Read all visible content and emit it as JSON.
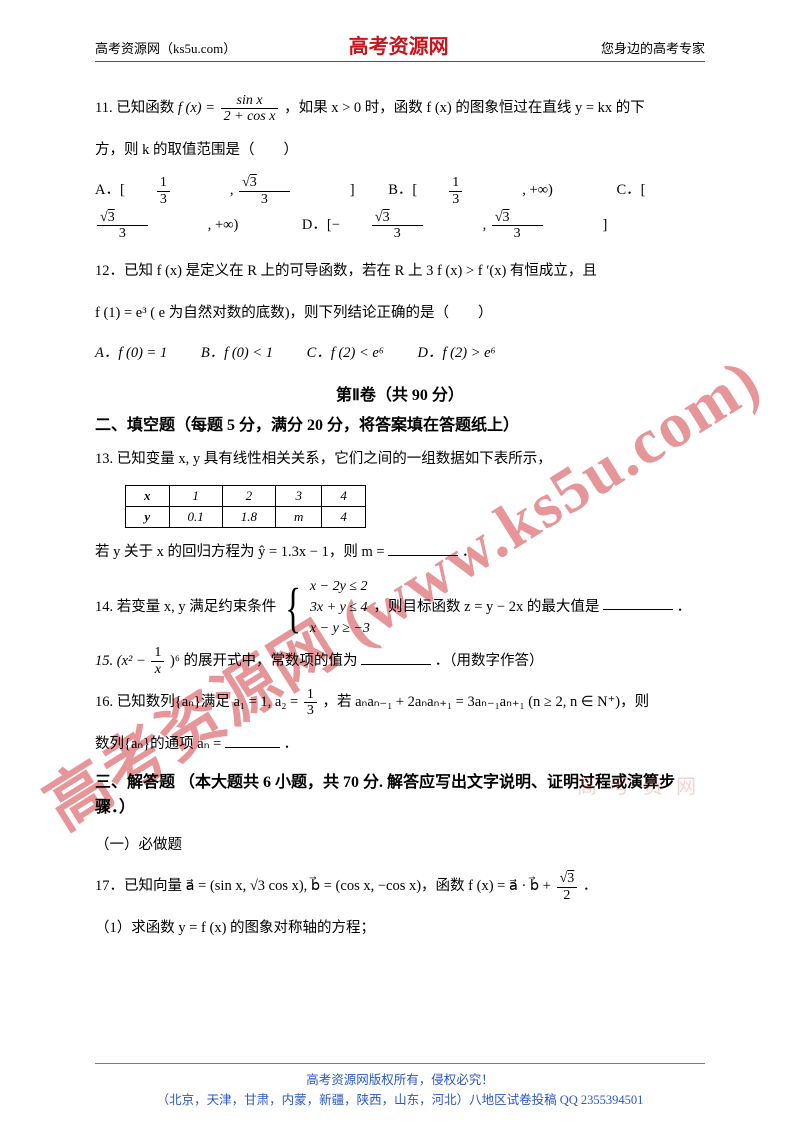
{
  "header": {
    "left": "高考资源网（ks5u.com）",
    "center": "高考资源网",
    "right": "您身边的高考专家"
  },
  "q11": {
    "prefix": "11. 已知函数 ",
    "fx": "f (x) = ",
    "frac_num": "sin x",
    "frac_den": "2 + cos x",
    "mid1": "，如果 x > 0 时，函数 f (x) 的图象恒过在直线 y = kx 的下",
    "line2": "方，则 k 的取值范围是（　　）",
    "A_pre": "A．[",
    "A_f1n": "1",
    "A_f1d": "3",
    "A_f2n_root": "3",
    "A_f2d": "3",
    "B_pre": "B．[",
    "B_f1n": "1",
    "B_f1d": "3",
    "B_suf": ", +∞)",
    "C_pre": "C．[",
    "C_f1n_root": "3",
    "C_f1d": "3",
    "C_suf": ", +∞)",
    "D_pre": "D．[−",
    "D_f1n_root": "3",
    "D_f1d": "3",
    "D_f2n_root": "3",
    "D_f2d": "3"
  },
  "q12": {
    "l1": "12．已知 f (x) 是定义在 R 上的可导函数，若在 R 上 3 f (x) > f ′(x) 有恒成立，且",
    "l2": "f (1) = e³ ( e 为自然对数的底数)，则下列结论正确的是（　　）",
    "A": "A．f (0) = 1",
    "B": "B．f (0) < 1",
    "C": "C．f (2) < e⁶",
    "D": "D．f (2) > e⁶"
  },
  "sec2_title": "第Ⅱ卷（共 90 分）",
  "sec2_sub": "二、填空题（每题 5 分，满分 20 分，将答案填在答题纸上）",
  "q13": {
    "l1": "13. 已知变量 x, y 具有线性相关关系，它们之间的一组数据如下表所示，",
    "table": {
      "head_x": "x",
      "head_y": "y",
      "x": [
        "1",
        "2",
        "3",
        "4"
      ],
      "y": [
        "0.1",
        "1.8",
        "m",
        "4"
      ]
    },
    "l2_pre": "若 y 关于 x 的回归方程为 ŷ = 1.3x − 1，则 m = ",
    "l2_suf": "．"
  },
  "q14": {
    "pre": "14. 若变量 x, y 满足约束条件 ",
    "c1": "x − 2y ≤ 2",
    "c2": "3x + y ≤ 4",
    "c3": "x − y ≥ −3",
    "post": "，则目标函数 z = y − 2x 的最大值是",
    "suf": "．"
  },
  "q15": {
    "pre": "15. (x² − ",
    "f_num": "1",
    "f_den": "x",
    "post": ")⁶ 的展开式中，常数项的值为",
    "suf": "．（用数字作答）"
  },
  "q16": {
    "pre": "16. 已知数列{aₙ}满足 a₁ = 1, a₂ = ",
    "f_num": "1",
    "f_den": "3",
    "mid": "，若 aₙaₙ₋₁ + 2aₙaₙ₊₁ = 3aₙ₋₁aₙ₊₁ (n ≥ 2, n ∈ N⁺)，则",
    "l2_pre": "数列{aₙ}的通项 aₙ = ",
    "l2_suf": "．"
  },
  "sec3_sub": "三、解答题 （本大题共 6 小题，共 70 分. 解答应写出文字说明、证明过程或演算步骤．）",
  "sec3_note": "（一）必做题",
  "q17": {
    "pre": "17．已知向量 a⃗ = (sin x, √3 cos x), b⃗ = (cos x, −cos x)，函数 f (x) = a⃗ · b⃗ + ",
    "f_num_root": "3",
    "f_den": "2",
    "suf": "．",
    "sub1": "（1）求函数 y = f (x) 的图象对称轴的方程；"
  },
  "footer": {
    "l1": "高考资源网版权所有，侵权必究！",
    "l2": "（北京，天津，甘肃，内蒙，新疆，陕西，山东，河北）八地区试卷投稿 QQ 2355394501"
  },
  "watermark": "高考资源网 (www.ks5u.com)",
  "ghost": "高 考 资 网",
  "colors": {
    "brand": "#c8141a",
    "footer": "#2a57c7"
  }
}
